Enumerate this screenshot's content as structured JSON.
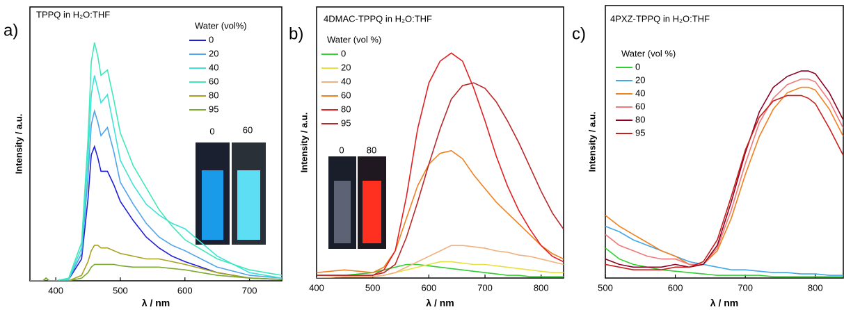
{
  "chart_data": [
    {
      "type": "line",
      "label": "a)",
      "title": "TPPQ in H₂O:THF",
      "x_label": "λ / nm",
      "y_label": "Intensity / a.u.",
      "legend_title": "Water (vol%)",
      "inset_labels": [
        "0",
        "60"
      ],
      "xlim": [
        360,
        750
      ],
      "xticks": [
        400,
        500,
        600,
        700
      ],
      "ylim": [
        0,
        100
      ],
      "x": [
        360,
        380,
        385,
        390,
        400,
        420,
        440,
        450,
        455,
        460,
        465,
        470,
        480,
        490,
        500,
        520,
        540,
        560,
        580,
        600,
        650,
        700,
        750
      ],
      "series": [
        {
          "name": "0",
          "color": "#1f1fd6",
          "values": [
            0,
            0,
            1,
            0,
            0,
            0.5,
            8,
            30,
            46,
            49,
            45,
            40,
            40,
            35,
            29,
            22,
            16,
            12,
            9,
            7,
            3,
            1,
            0.5
          ]
        },
        {
          "name": "20",
          "color": "#4fa3e8",
          "values": [
            0,
            0,
            1,
            0,
            0,
            0.5,
            10,
            38,
            57,
            62,
            58,
            53,
            56,
            47,
            36,
            28,
            21,
            16,
            13,
            11,
            5,
            2,
            1
          ]
        },
        {
          "name": "40",
          "color": "#3fe0d8",
          "values": [
            0,
            0,
            1,
            0,
            0,
            0.5,
            12,
            45,
            68,
            75,
            70,
            65,
            68,
            56,
            44,
            35,
            28,
            24,
            21,
            19,
            9,
            3,
            1
          ]
        },
        {
          "name": "60",
          "color": "#40e8b8",
          "values": [
            0,
            0,
            1,
            0,
            0,
            1,
            14,
            52,
            80,
            87,
            82,
            75,
            77,
            66,
            54,
            42,
            34,
            26,
            20,
            15,
            8,
            4,
            2
          ]
        },
        {
          "name": "80",
          "color": "#a8a020",
          "values": [
            0,
            0,
            1,
            0,
            0,
            0,
            2,
            7,
            11,
            13,
            13,
            12,
            12,
            11,
            10,
            9,
            8,
            8,
            7,
            6,
            3,
            1,
            0.5
          ]
        },
        {
          "name": "95",
          "color": "#7aaa30",
          "values": [
            0,
            0,
            1,
            0,
            0,
            0,
            1,
            3,
            5,
            6,
            6,
            6,
            6,
            6,
            5.5,
            5,
            5,
            5,
            4.5,
            4,
            2,
            1,
            0.5
          ]
        }
      ]
    },
    {
      "type": "line",
      "label": "b)",
      "title": "4DMAC-TPPQ in H₂O:THF",
      "x_label": "λ / nm",
      "y_label": "Intensity / a.u.",
      "legend_title": "Water (vol %)",
      "inset_labels": [
        "0",
        "80"
      ],
      "xlim": [
        400,
        840
      ],
      "xticks": [
        400,
        500,
        600,
        700,
        800
      ],
      "ylim": [
        0,
        100
      ],
      "x": [
        400,
        450,
        500,
        520,
        540,
        560,
        580,
        600,
        620,
        640,
        660,
        680,
        700,
        720,
        740,
        760,
        780,
        800,
        820,
        840
      ],
      "series": [
        {
          "name": "0",
          "color": "#30d030",
          "values": [
            1,
            1,
            2,
            3,
            4,
            5,
            5,
            4.5,
            4,
            3.5,
            3,
            2.5,
            2,
            1.5,
            1,
            1,
            0.5,
            0.5,
            0.5,
            0.5
          ]
        },
        {
          "name": "20",
          "color": "#e8e040",
          "values": [
            0,
            0.5,
            0.5,
            1,
            2,
            3,
            4,
            5,
            6,
            6,
            5.5,
            5,
            5,
            4.5,
            4,
            3.5,
            3,
            2.5,
            2,
            2
          ]
        },
        {
          "name": "40",
          "color": "#f0b080",
          "values": [
            0,
            0.5,
            0.5,
            1,
            2,
            4,
            6,
            8,
            10,
            12,
            12,
            11.5,
            11,
            10,
            9.5,
            8.5,
            8,
            7,
            6,
            5
          ]
        },
        {
          "name": "60",
          "color": "#f08020",
          "values": [
            2,
            3,
            2,
            4,
            10,
            22,
            34,
            42,
            46,
            47,
            44,
            38,
            33,
            28,
            24,
            20,
            16,
            12,
            9,
            7
          ]
        },
        {
          "name": "80",
          "color": "#e02020",
          "values": [
            1,
            1,
            1,
            3,
            10,
            30,
            55,
            72,
            80,
            83,
            80,
            70,
            58,
            45,
            34,
            25,
            18,
            12,
            8,
            6
          ]
        },
        {
          "name": "95",
          "color": "#b82828",
          "values": [
            1,
            1,
            1,
            2,
            5,
            15,
            28,
            42,
            55,
            66,
            71,
            72,
            70,
            65,
            58,
            50,
            41,
            32,
            24,
            18
          ]
        }
      ]
    },
    {
      "type": "line",
      "label": "c)",
      "title": "4PXZ-TPPQ in H₂O:THF",
      "x_label": "λ / nm",
      "y_label": "Intensity / a.u.",
      "legend_title": "Water (vol %)",
      "xlim": [
        500,
        840
      ],
      "xticks": [
        500,
        600,
        700,
        800
      ],
      "ylim": [
        0,
        100
      ],
      "x": [
        500,
        520,
        540,
        560,
        580,
        600,
        620,
        640,
        660,
        680,
        700,
        720,
        740,
        760,
        780,
        790,
        800,
        820,
        840
      ],
      "series": [
        {
          "name": "0",
          "color": "#30d030",
          "values": [
            11,
            7,
            5,
            4,
            3,
            2.5,
            2,
            1.5,
            1,
            1,
            1,
            1,
            0.5,
            0.5,
            0.5,
            0.5,
            0.5,
            0.5,
            0.5
          ]
        },
        {
          "name": "20",
          "color": "#40a8e8",
          "values": [
            19,
            17,
            14,
            12,
            10,
            8,
            6,
            5,
            4,
            3,
            3,
            2.5,
            2,
            2,
            1.5,
            1.5,
            1.5,
            1,
            1
          ]
        },
        {
          "name": "40",
          "color": "#f08020",
          "values": [
            23,
            19,
            16,
            13,
            10,
            8,
            5,
            5,
            10,
            22,
            38,
            52,
            62,
            68,
            70,
            70,
            69,
            62,
            52
          ]
        },
        {
          "name": "60",
          "color": "#f07878",
          "values": [
            16,
            12,
            10,
            8,
            7,
            7,
            5,
            5,
            11,
            25,
            42,
            57,
            66,
            71,
            73,
            73,
            72,
            65,
            55
          ]
        },
        {
          "name": "80",
          "color": "#8b0020",
          "values": [
            7,
            5,
            4,
            4,
            4,
            5,
            4,
            5,
            12,
            28,
            46,
            61,
            70,
            74,
            76,
            76,
            75,
            68,
            58
          ]
        },
        {
          "name": "95",
          "color": "#c81e1e",
          "values": [
            5,
            4,
            3,
            3,
            3,
            4,
            4,
            6,
            14,
            30,
            47,
            59,
            65,
            67,
            67,
            66,
            64,
            55,
            45
          ]
        }
      ]
    }
  ]
}
